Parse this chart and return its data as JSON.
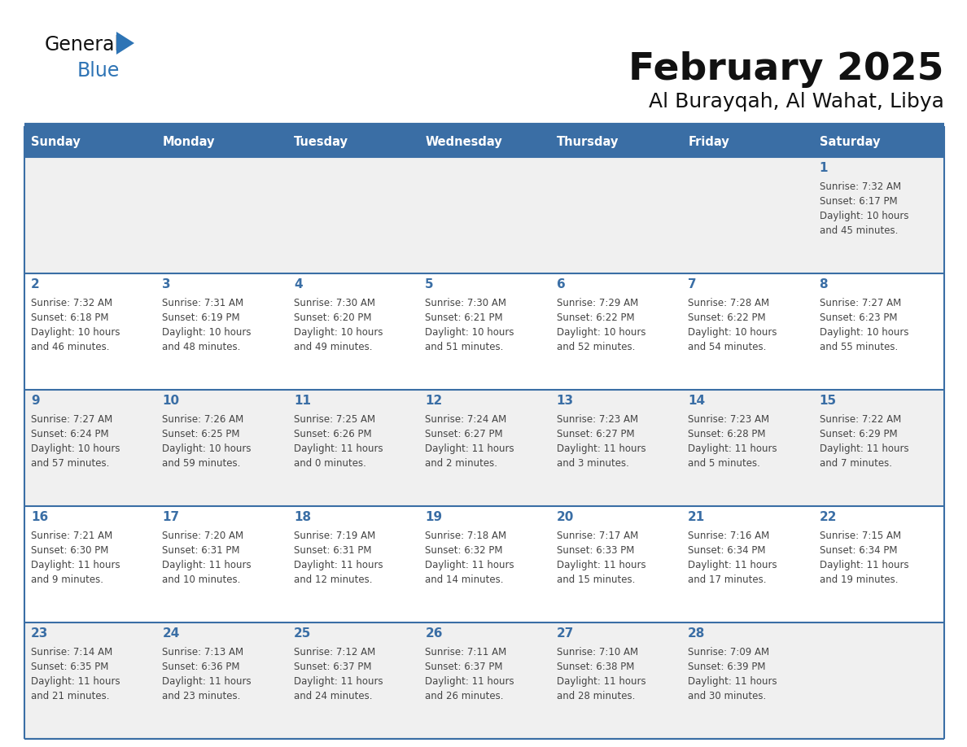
{
  "title": "February 2025",
  "subtitle": "Al Burayqah, Al Wahat, Libya",
  "days_of_week": [
    "Sunday",
    "Monday",
    "Tuesday",
    "Wednesday",
    "Thursday",
    "Friday",
    "Saturday"
  ],
  "header_bg": "#3A6EA5",
  "header_text": "#FFFFFF",
  "row_bg_odd": "#F0F0F0",
  "row_bg_even": "#FFFFFF",
  "border_color": "#3A6EA5",
  "day_num_color": "#3A6EA5",
  "cell_text_color": "#444444",
  "title_color": "#111111",
  "subtitle_color": "#111111",
  "logo_general_color": "#111111",
  "logo_blue_color": "#2E74B5",
  "logo_triangle_color": "#2E74B5",
  "calendar_data": [
    [
      null,
      null,
      null,
      null,
      null,
      null,
      {
        "day": 1,
        "sunrise": "7:32 AM",
        "sunset": "6:17 PM",
        "daylight": "10 hours and 45 minutes."
      }
    ],
    [
      {
        "day": 2,
        "sunrise": "7:32 AM",
        "sunset": "6:18 PM",
        "daylight": "10 hours and 46 minutes."
      },
      {
        "day": 3,
        "sunrise": "7:31 AM",
        "sunset": "6:19 PM",
        "daylight": "10 hours and 48 minutes."
      },
      {
        "day": 4,
        "sunrise": "7:30 AM",
        "sunset": "6:20 PM",
        "daylight": "10 hours and 49 minutes."
      },
      {
        "day": 5,
        "sunrise": "7:30 AM",
        "sunset": "6:21 PM",
        "daylight": "10 hours and 51 minutes."
      },
      {
        "day": 6,
        "sunrise": "7:29 AM",
        "sunset": "6:22 PM",
        "daylight": "10 hours and 52 minutes."
      },
      {
        "day": 7,
        "sunrise": "7:28 AM",
        "sunset": "6:22 PM",
        "daylight": "10 hours and 54 minutes."
      },
      {
        "day": 8,
        "sunrise": "7:27 AM",
        "sunset": "6:23 PM",
        "daylight": "10 hours and 55 minutes."
      }
    ],
    [
      {
        "day": 9,
        "sunrise": "7:27 AM",
        "sunset": "6:24 PM",
        "daylight": "10 hours and 57 minutes."
      },
      {
        "day": 10,
        "sunrise": "7:26 AM",
        "sunset": "6:25 PM",
        "daylight": "10 hours and 59 minutes."
      },
      {
        "day": 11,
        "sunrise": "7:25 AM",
        "sunset": "6:26 PM",
        "daylight": "11 hours and 0 minutes."
      },
      {
        "day": 12,
        "sunrise": "7:24 AM",
        "sunset": "6:27 PM",
        "daylight": "11 hours and 2 minutes."
      },
      {
        "day": 13,
        "sunrise": "7:23 AM",
        "sunset": "6:27 PM",
        "daylight": "11 hours and 3 minutes."
      },
      {
        "day": 14,
        "sunrise": "7:23 AM",
        "sunset": "6:28 PM",
        "daylight": "11 hours and 5 minutes."
      },
      {
        "day": 15,
        "sunrise": "7:22 AM",
        "sunset": "6:29 PM",
        "daylight": "11 hours and 7 minutes."
      }
    ],
    [
      {
        "day": 16,
        "sunrise": "7:21 AM",
        "sunset": "6:30 PM",
        "daylight": "11 hours and 9 minutes."
      },
      {
        "day": 17,
        "sunrise": "7:20 AM",
        "sunset": "6:31 PM",
        "daylight": "11 hours and 10 minutes."
      },
      {
        "day": 18,
        "sunrise": "7:19 AM",
        "sunset": "6:31 PM",
        "daylight": "11 hours and 12 minutes."
      },
      {
        "day": 19,
        "sunrise": "7:18 AM",
        "sunset": "6:32 PM",
        "daylight": "11 hours and 14 minutes."
      },
      {
        "day": 20,
        "sunrise": "7:17 AM",
        "sunset": "6:33 PM",
        "daylight": "11 hours and 15 minutes."
      },
      {
        "day": 21,
        "sunrise": "7:16 AM",
        "sunset": "6:34 PM",
        "daylight": "11 hours and 17 minutes."
      },
      {
        "day": 22,
        "sunrise": "7:15 AM",
        "sunset": "6:34 PM",
        "daylight": "11 hours and 19 minutes."
      }
    ],
    [
      {
        "day": 23,
        "sunrise": "7:14 AM",
        "sunset": "6:35 PM",
        "daylight": "11 hours and 21 minutes."
      },
      {
        "day": 24,
        "sunrise": "7:13 AM",
        "sunset": "6:36 PM",
        "daylight": "11 hours and 23 minutes."
      },
      {
        "day": 25,
        "sunrise": "7:12 AM",
        "sunset": "6:37 PM",
        "daylight": "11 hours and 24 minutes."
      },
      {
        "day": 26,
        "sunrise": "7:11 AM",
        "sunset": "6:37 PM",
        "daylight": "11 hours and 26 minutes."
      },
      {
        "day": 27,
        "sunrise": "7:10 AM",
        "sunset": "6:38 PM",
        "daylight": "11 hours and 28 minutes."
      },
      {
        "day": 28,
        "sunrise": "7:09 AM",
        "sunset": "6:39 PM",
        "daylight": "11 hours and 30 minutes."
      },
      null
    ]
  ]
}
